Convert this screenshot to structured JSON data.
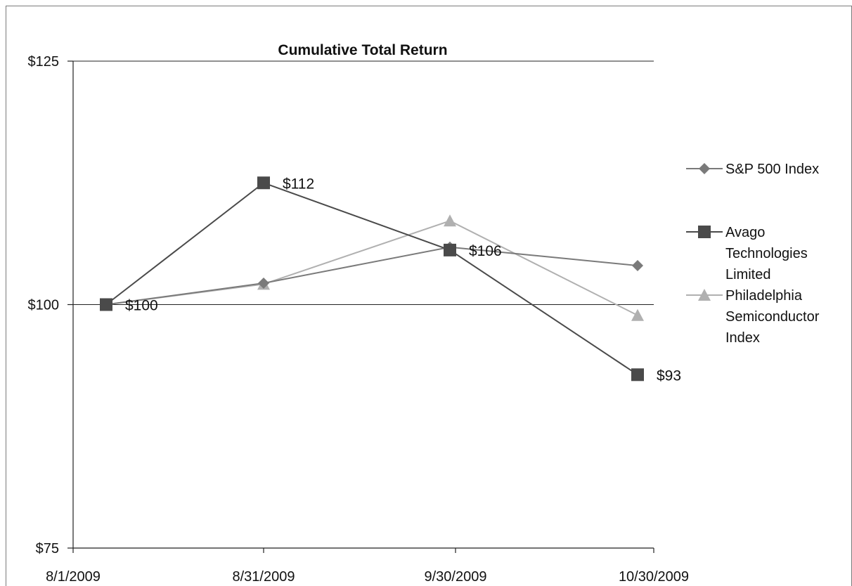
{
  "chart_data": {
    "type": "line",
    "title": "Cumulative Total Return",
    "categories": [
      "8/1/2009",
      "8/31/2009",
      "9/30/2009",
      "10/30/2009"
    ],
    "y_ticks": [
      "$75",
      "$100",
      "$125"
    ],
    "ylim": [
      75,
      125
    ],
    "grid": "horizontal line at $100 only",
    "legend_position": "right",
    "series": [
      {
        "name": "S&P 500 Index",
        "values": [
          100,
          102.2,
          105.9,
          104
        ],
        "color": "#7a7a7a",
        "marker": "diamond",
        "data_labels": [
          "",
          "",
          "",
          ""
        ]
      },
      {
        "name": "Avago Technologies Limited",
        "values": [
          100,
          112.5,
          105.6,
          92.8
        ],
        "color": "#4a4a4a",
        "marker": "square",
        "data_labels": [
          "$100",
          "$112",
          "$106",
          "$93"
        ]
      },
      {
        "name": "Philadelphia Semiconductor Index",
        "values": [
          100,
          102.1,
          108.6,
          98.9
        ],
        "color": "#b0b0b0",
        "marker": "triangle",
        "data_labels": [
          "",
          "",
          "",
          ""
        ]
      }
    ],
    "legend_lines": [
      [
        "S&P 500 Index"
      ],
      [
        "Avago",
        "Technologies",
        "Limited"
      ],
      [
        "Philadelphia",
        "Semiconductor",
        "Index"
      ]
    ]
  }
}
